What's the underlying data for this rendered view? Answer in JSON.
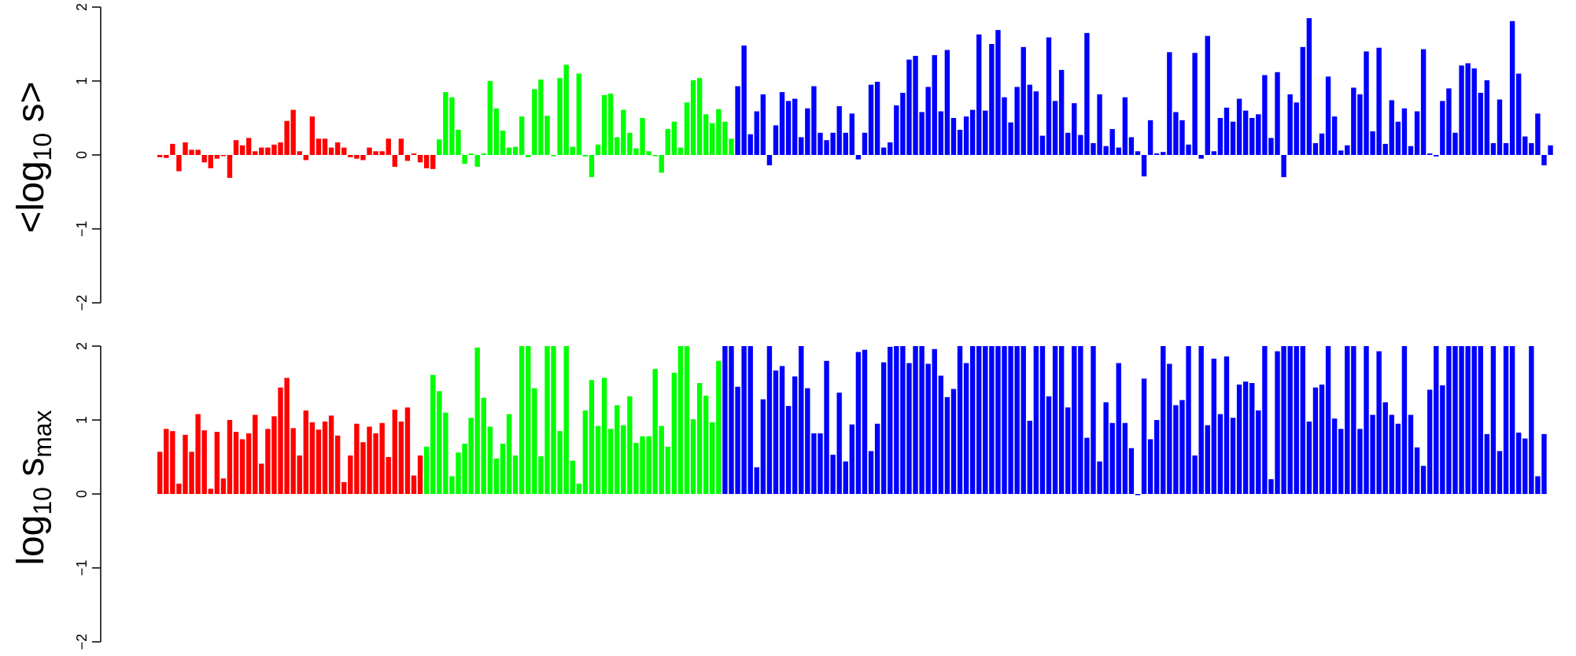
{
  "colors": {
    "group1": "#ff0000",
    "group2": "#00ff00",
    "group3": "#0000ff",
    "axis": "#000000"
  },
  "chart_data": [
    {
      "type": "bar",
      "ylabel": {
        "prefix": "<log",
        "subscript": "10",
        "suffix": " s>"
      },
      "ylim": [
        -2,
        2
      ],
      "yticks": [
        -2,
        -1,
        0,
        1,
        2
      ],
      "ytick_labels": [
        "−2",
        "−1",
        "0",
        "1",
        "2"
      ],
      "grid": false,
      "legend": "none",
      "series": [
        {
          "color": "group1",
          "values": [
            -0.03,
            -0.04,
            0.15,
            -0.22,
            0.17,
            0.07,
            0.07,
            -0.1,
            -0.18,
            -0.05,
            0.0,
            -0.31,
            0.2,
            0.13,
            0.23,
            0.05,
            0.1,
            0.1,
            0.14,
            0.17,
            0.46,
            0.61,
            0.05,
            -0.07,
            0.52,
            0.22,
            0.22,
            0.1,
            0.17,
            0.1,
            -0.03,
            -0.05,
            -0.07,
            0.1,
            0.05,
            0.05,
            0.22,
            -0.16,
            0.22,
            -0.08,
            0.02,
            -0.1,
            -0.18,
            -0.19
          ]
        },
        {
          "color": "group2",
          "values": [
            0.21,
            0.85,
            0.78,
            0.34,
            -0.12,
            0.02,
            -0.16,
            0.02,
            1.0,
            0.63,
            0.33,
            0.1,
            0.11,
            0.52,
            -0.03,
            0.89,
            1.02,
            0.53,
            0.0,
            1.04,
            1.22,
            0.11,
            1.1,
            -0.02,
            -0.3,
            0.14,
            0.81,
            0.83,
            0.24,
            0.61,
            0.3,
            0.09,
            0.5,
            0.05,
            0.0,
            -0.24,
            0.35,
            0.45,
            0.1,
            0.71,
            1.01,
            1.04,
            0.55,
            0.43,
            0.62,
            0.45,
            0.22
          ]
        },
        {
          "color": "group3",
          "values": [
            0.93,
            1.48,
            0.28,
            0.59,
            0.82,
            -0.14,
            0.4,
            0.85,
            0.73,
            0.76,
            0.24,
            0.63,
            0.93,
            0.3,
            0.2,
            0.3,
            0.66,
            0.3,
            0.56,
            -0.06,
            0.3,
            0.95,
            0.99,
            0.1,
            0.17,
            0.67,
            0.84,
            1.29,
            1.34,
            0.58,
            0.92,
            1.35,
            0.59,
            1.42,
            0.5,
            0.34,
            0.52,
            0.61,
            1.63,
            0.6,
            1.5,
            1.69,
            0.78,
            0.44,
            0.92,
            1.46,
            0.95,
            0.86,
            0.26,
            1.59,
            0.73,
            1.15,
            0.3,
            0.7,
            0.27,
            1.65,
            0.16,
            0.82,
            0.12,
            0.35,
            0.1,
            0.78,
            0.24,
            0.05,
            -0.29,
            0.47,
            0.02,
            0.04,
            1.39,
            0.58,
            0.47,
            0.14,
            1.38,
            -0.05,
            1.61,
            0.05,
            0.5,
            0.64,
            0.45,
            0.76,
            0.6,
            0.5,
            0.55,
            1.08,
            0.23,
            1.12,
            -0.3,
            0.82,
            0.71,
            1.46,
            1.85,
            0.16,
            0.29,
            1.06,
            0.52,
            0.06,
            0.13,
            0.91,
            0.82,
            1.4,
            0.32,
            1.45,
            0.15,
            0.74,
            0.45,
            0.63,
            0.12,
            0.59,
            1.43,
            0.02,
            -0.02,
            0.73,
            0.9,
            0.3,
            1.21,
            1.24,
            1.17,
            0.84,
            1.01,
            0.16,
            0.75,
            0.16,
            1.81,
            1.1,
            0.25,
            0.16,
            0.56,
            -0.14,
            0.13
          ]
        }
      ]
    },
    {
      "type": "bar",
      "ylabel": {
        "prefix": "log",
        "subscript": "10",
        "suffix": " s",
        "suffix_subscript": "max"
      },
      "ylim": [
        -2,
        2
      ],
      "yticks": [
        -2,
        -1,
        0,
        1,
        2
      ],
      "ytick_labels": [
        "−2",
        "−1",
        "0",
        "1",
        "2"
      ],
      "grid": false,
      "legend": "none",
      "series": [
        {
          "color": "group1",
          "values": [
            0.57,
            0.88,
            0.85,
            0.14,
            0.8,
            0.57,
            1.08,
            0.86,
            0.07,
            0.84,
            0.21,
            1.0,
            0.84,
            0.74,
            0.82,
            1.07,
            0.41,
            0.88,
            1.05,
            1.44,
            1.57,
            0.89,
            0.52,
            1.13,
            0.97,
            0.87,
            0.98,
            1.06,
            0.79,
            0.16,
            0.52,
            0.95,
            0.7,
            0.91,
            0.82,
            0.96,
            0.5,
            1.14,
            0.98,
            1.17,
            0.25,
            0.52
          ]
        },
        {
          "color": "group2",
          "values": [
            0.64,
            1.61,
            1.39,
            1.1,
            0.24,
            0.56,
            0.68,
            1.03,
            1.98,
            1.3,
            0.91,
            0.48,
            0.68,
            1.08,
            0.52,
            2.0,
            2.0,
            1.43,
            0.51,
            2.0,
            2.0,
            0.85,
            2.0,
            0.45,
            0.14,
            1.13,
            1.54,
            0.92,
            1.57,
            0.88,
            1.2,
            0.93,
            1.32,
            0.69,
            0.78,
            0.78,
            1.69,
            0.92,
            0.64,
            1.64,
            2.0,
            2.0,
            1.01,
            1.5,
            1.33,
            0.97,
            1.8
          ]
        },
        {
          "color": "group3",
          "values": [
            2.0,
            2.0,
            1.45,
            2.0,
            2.0,
            0.36,
            1.28,
            2.0,
            1.67,
            1.73,
            1.19,
            1.59,
            2.0,
            1.43,
            0.82,
            0.82,
            1.8,
            0.53,
            1.37,
            0.44,
            0.94,
            1.92,
            1.95,
            0.58,
            0.95,
            1.78,
            1.99,
            2.0,
            2.0,
            1.77,
            2.0,
            2.0,
            1.76,
            1.96,
            1.6,
            1.31,
            1.42,
            2.0,
            1.77,
            2.0,
            2.0,
            2.0,
            2.0,
            2.0,
            2.0,
            2.0,
            2.0,
            2.0,
            0.99,
            2.0,
            2.0,
            1.32,
            2.0,
            2.0,
            1.17,
            2.0,
            2.0,
            0.76,
            2.0,
            0.44,
            1.24,
            0.96,
            1.77,
            0.96,
            0.62,
            0.0,
            1.56,
            0.74,
            1.0,
            2.0,
            1.76,
            1.2,
            1.27,
            2.0,
            0.52,
            2.0,
            0.93,
            1.83,
            1.08,
            1.86,
            1.03,
            1.48,
            1.52,
            1.5,
            1.13,
            2.0,
            0.2,
            1.93,
            2.0,
            2.0,
            2.0,
            2.0,
            0.98,
            1.44,
            1.48,
            2.0,
            1.02,
            0.88,
            2.0,
            2.0,
            0.88,
            2.0,
            1.07,
            1.93,
            1.24,
            1.07,
            0.95,
            2.0,
            1.07,
            0.63,
            0.38,
            1.41,
            2.0,
            1.47,
            2.0,
            2.0,
            2.0,
            2.0,
            2.0,
            2.0,
            0.81,
            2.0,
            0.58,
            2.0,
            2.0,
            0.83,
            0.75,
            2.0,
            0.24,
            0.81
          ]
        }
      ]
    }
  ]
}
